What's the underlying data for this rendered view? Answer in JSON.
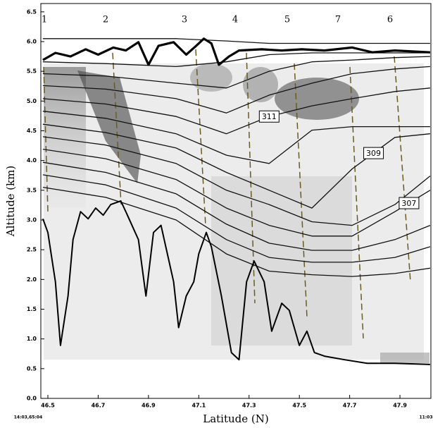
{
  "chart_data": {
    "type": "cross-section",
    "xlabel": "Latitude (N)",
    "ylabel": "Altitude (km)",
    "xlim": [
      46.472,
      48.023
    ],
    "ylim": [
      0,
      6.64
    ],
    "xticks": [
      46.5,
      46.7,
      46.9,
      47.1,
      47.3,
      47.5,
      47.7,
      47.9
    ],
    "yticks": [
      {
        "value": 0,
        "label": "0.0"
      },
      0.5,
      {
        "value": 1,
        "label": "1.0"
      },
      1.5,
      {
        "value": 2,
        "label": "2.0"
      },
      2.5,
      {
        "value": 3,
        "label": "3.0"
      },
      3.5,
      {
        "value": 4,
        "label": "4.0"
      },
      4.5,
      {
        "value": 5,
        "label": "5.0"
      },
      5.5,
      {
        "value": 6,
        "label": "6.0"
      },
      6.5
    ],
    "legs": [
      "1",
      "2",
      "3",
      "4",
      "5",
      "7",
      "6"
    ],
    "annotations": [
      "14:03,65:04",
      "11:03"
    ],
    "series": [
      {
        "color": "#000000",
        "width": 2,
        "x": [
          46.48,
          46.5,
          46.53,
          46.55,
          46.58,
          46.6,
          46.63,
          46.66,
          46.69,
          46.72,
          46.75,
          46.79,
          46.81,
          46.86,
          46.89,
          46.92,
          46.95,
          47.0,
          47.02,
          47.05,
          47.08,
          47.1,
          47.13,
          47.15,
          47.19,
          47.23,
          47.26,
          47.29,
          47.32,
          47.36,
          47.39,
          47.43,
          47.46,
          47.5,
          47.53,
          47.56,
          47.6,
          47.68,
          47.77,
          47.88,
          48.02
        ],
        "values": [
          3.02,
          2.79,
          1.96,
          0.89,
          1.72,
          2.67,
          3.14,
          3.02,
          3.2,
          3.08,
          3.26,
          3.32,
          3.14,
          2.67,
          1.72,
          2.79,
          2.91,
          1.96,
          1.19,
          1.72,
          1.96,
          2.43,
          2.79,
          2.55,
          1.72,
          0.77,
          0.65,
          1.96,
          2.31,
          1.96,
          1.13,
          1.6,
          1.48,
          0.89,
          1.13,
          0.77,
          0.71,
          0.65,
          0.59,
          0.59,
          0.57
        ]
      },
      {
        "color": "#000000",
        "width": 3.2,
        "x": [
          46.48,
          46.53,
          46.59,
          46.65,
          46.7,
          46.76,
          46.81,
          46.86,
          46.9,
          46.94,
          47.0,
          47.05,
          47.09,
          47.12,
          47.15,
          47.18,
          47.22,
          47.26,
          47.35,
          47.43,
          47.51,
          47.6,
          47.71,
          47.79,
          47.88,
          48.02
        ],
        "values": [
          5.69,
          5.81,
          5.75,
          5.87,
          5.78,
          5.9,
          5.85,
          5.99,
          5.61,
          5.93,
          5.99,
          5.78,
          5.93,
          6.05,
          5.97,
          5.61,
          5.75,
          5.85,
          5.87,
          5.85,
          5.87,
          5.85,
          5.9,
          5.82,
          5.85,
          5.82
        ]
      }
    ],
    "contour_color": "#111111",
    "contour_x": [
      46.48,
      46.73,
      47.01,
      47.21,
      47.38,
      47.55,
      47.71,
      47.88,
      48.02
    ],
    "contours": [
      {
        "values": [
          6.05,
          6.05,
          6.05,
          6.01,
          5.97,
          5.97,
          5.97,
          5.97,
          5.97
        ]
      },
      {
        "values": [
          5.66,
          5.63,
          5.58,
          5.66,
          5.78,
          5.81,
          5.81,
          5.81,
          5.81
        ]
      },
      {
        "values": [
          5.46,
          5.42,
          5.3,
          5.22,
          5.5,
          5.66,
          5.69,
          5.73,
          5.75
        ]
      },
      {
        "values": [
          5.26,
          5.2,
          5.04,
          4.8,
          5.1,
          5.3,
          5.46,
          5.54,
          5.58
        ]
      },
      {
        "values": [
          5.04,
          4.95,
          4.74,
          4.45,
          4.74,
          4.92,
          5.04,
          5.16,
          5.22
        ],
        "label": "311"
      },
      {
        "values": [
          4.83,
          4.71,
          4.45,
          4.09,
          3.95,
          4.51,
          4.57,
          4.57,
          4.57
        ]
      },
      {
        "values": [
          4.61,
          4.47,
          4.21,
          3.8,
          3.5,
          3.2,
          3.86,
          4.39,
          4.45
        ],
        "label": "309"
      },
      {
        "values": [
          4.4,
          4.26,
          3.95,
          3.5,
          3.26,
          2.97,
          2.91,
          3.26,
          3.74
        ]
      },
      {
        "values": [
          4.19,
          4.03,
          3.68,
          3.2,
          2.91,
          2.73,
          2.73,
          3.14,
          3.5
        ],
        "label": "307"
      },
      {
        "values": [
          3.97,
          3.8,
          3.44,
          2.93,
          2.61,
          2.49,
          2.49,
          2.67,
          2.91
        ]
      },
      {
        "values": [
          3.76,
          3.59,
          3.2,
          2.67,
          2.37,
          2.29,
          2.29,
          2.37,
          2.55
        ]
      },
      {
        "values": [
          3.55,
          3.38,
          3.0,
          2.43,
          2.14,
          2.08,
          2.05,
          2.1,
          2.19
        ]
      }
    ]
  }
}
